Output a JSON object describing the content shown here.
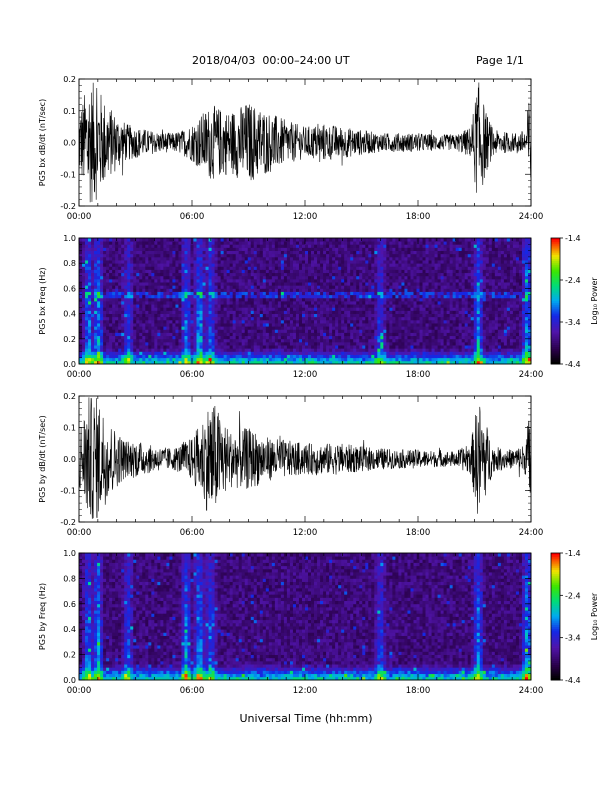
{
  "header": {
    "title": "2018/04/03  00:00–24:00 UT",
    "page": "Page 1/1"
  },
  "chart_data": [
    {
      "type": "line",
      "ylabel": "PG5 bx dB/dt (nT/sec)",
      "ylim": [
        -0.2,
        0.2
      ],
      "y_ticks": [
        "0.2",
        "0.1",
        "0.0",
        "-0.1",
        "-0.2"
      ],
      "x_ticks": [
        "00:00",
        "06:00",
        "12:00",
        "18:00",
        "24:00"
      ],
      "xlim_hours": [
        0,
        24
      ],
      "series": [
        {
          "color": "#000000",
          "envelope_hours": [
            0,
            0.5,
            1,
            1.5,
            2,
            2.5,
            3,
            4,
            5,
            5.5,
            6,
            6.5,
            7,
            8,
            9,
            10,
            11,
            12,
            13,
            14,
            15,
            16,
            17,
            18,
            19,
            20,
            20.8,
            21.2,
            21.6,
            22,
            23,
            23.7,
            24
          ],
          "envelope_amplitude": [
            0.1,
            0.2,
            0.18,
            0.12,
            0.09,
            0.06,
            0.05,
            0.035,
            0.03,
            0.04,
            0.06,
            0.09,
            0.12,
            0.1,
            0.13,
            0.1,
            0.07,
            0.05,
            0.06,
            0.05,
            0.04,
            0.03,
            0.03,
            0.03,
            0.025,
            0.025,
            0.05,
            0.2,
            0.1,
            0.04,
            0.03,
            0.04,
            0.2
          ]
        }
      ]
    },
    {
      "type": "heatmap",
      "ylabel": "PG5 bx Freq (Hz)",
      "ylim": [
        0.0,
        1.0
      ],
      "y_ticks": [
        "1.0",
        "0.8",
        "0.6",
        "0.4",
        "0.2",
        "0.0"
      ],
      "x_ticks": [
        "00:00",
        "06:00",
        "12:00",
        "18:00",
        "24:00"
      ],
      "xlim_hours": [
        0,
        24
      ],
      "colorbar": {
        "label": "Log₁₀ Power",
        "range": [
          -4.4,
          -1.4
        ],
        "ticks": [
          "-1.4",
          "-2.4",
          "-3.4",
          "-4.4"
        ]
      },
      "line_hz": 0.55,
      "active_hours": [
        0.5,
        1,
        2.6,
        5.7,
        6.4,
        7,
        16,
        21.2,
        23.8
      ],
      "active_strength": [
        0.8,
        0.9,
        0.6,
        0.7,
        0.9,
        0.7,
        0.6,
        0.8,
        0.9
      ]
    },
    {
      "type": "line",
      "ylabel": "PG5 by dB/dt (nT/sec)",
      "ylim": [
        -0.2,
        0.2
      ],
      "y_ticks": [
        "0.2",
        "0.1",
        "0.0",
        "-0.1",
        "-0.2"
      ],
      "x_ticks": [
        "00:00",
        "06:00",
        "12:00",
        "18:00",
        "24:00"
      ],
      "xlim_hours": [
        0,
        24
      ],
      "series": [
        {
          "color": "#000000",
          "envelope_hours": [
            0,
            0.5,
            1,
            1.5,
            2,
            2.5,
            3,
            4,
            5,
            5.5,
            6,
            6.5,
            7,
            8,
            9,
            10,
            11,
            12,
            13,
            14,
            15,
            16,
            17,
            18,
            19,
            20,
            20.8,
            21.2,
            21.6,
            22,
            23,
            23.7,
            24
          ],
          "envelope_amplitude": [
            0.1,
            0.2,
            0.2,
            0.13,
            0.09,
            0.06,
            0.06,
            0.04,
            0.035,
            0.05,
            0.07,
            0.12,
            0.2,
            0.09,
            0.1,
            0.07,
            0.06,
            0.05,
            0.05,
            0.05,
            0.04,
            0.035,
            0.03,
            0.03,
            0.025,
            0.025,
            0.05,
            0.2,
            0.12,
            0.04,
            0.03,
            0.05,
            0.2
          ]
        }
      ]
    },
    {
      "type": "heatmap",
      "ylabel": "PG5 by Freq (Hz)",
      "ylim": [
        0.0,
        1.0
      ],
      "y_ticks": [
        "1.0",
        "0.8",
        "0.6",
        "0.4",
        "0.2",
        "0.0"
      ],
      "x_ticks": [
        "00:00",
        "06:00",
        "12:00",
        "18:00",
        "24:00"
      ],
      "xlim_hours": [
        0,
        24
      ],
      "colorbar": {
        "label": "Log₁₀ Power",
        "range": [
          -4.4,
          -1.4
        ],
        "ticks": [
          "-1.4",
          "-2.4",
          "-3.4",
          "-4.4"
        ]
      },
      "line_hz": 0.0,
      "active_hours": [
        0.5,
        1,
        2.6,
        5.7,
        6.4,
        7,
        16,
        21.2,
        23.8
      ],
      "active_strength": [
        0.8,
        0.9,
        0.6,
        0.8,
        0.9,
        0.7,
        0.6,
        0.8,
        0.9
      ]
    }
  ],
  "footer": {
    "xlabel": "Universal Time (hh:mm)"
  }
}
